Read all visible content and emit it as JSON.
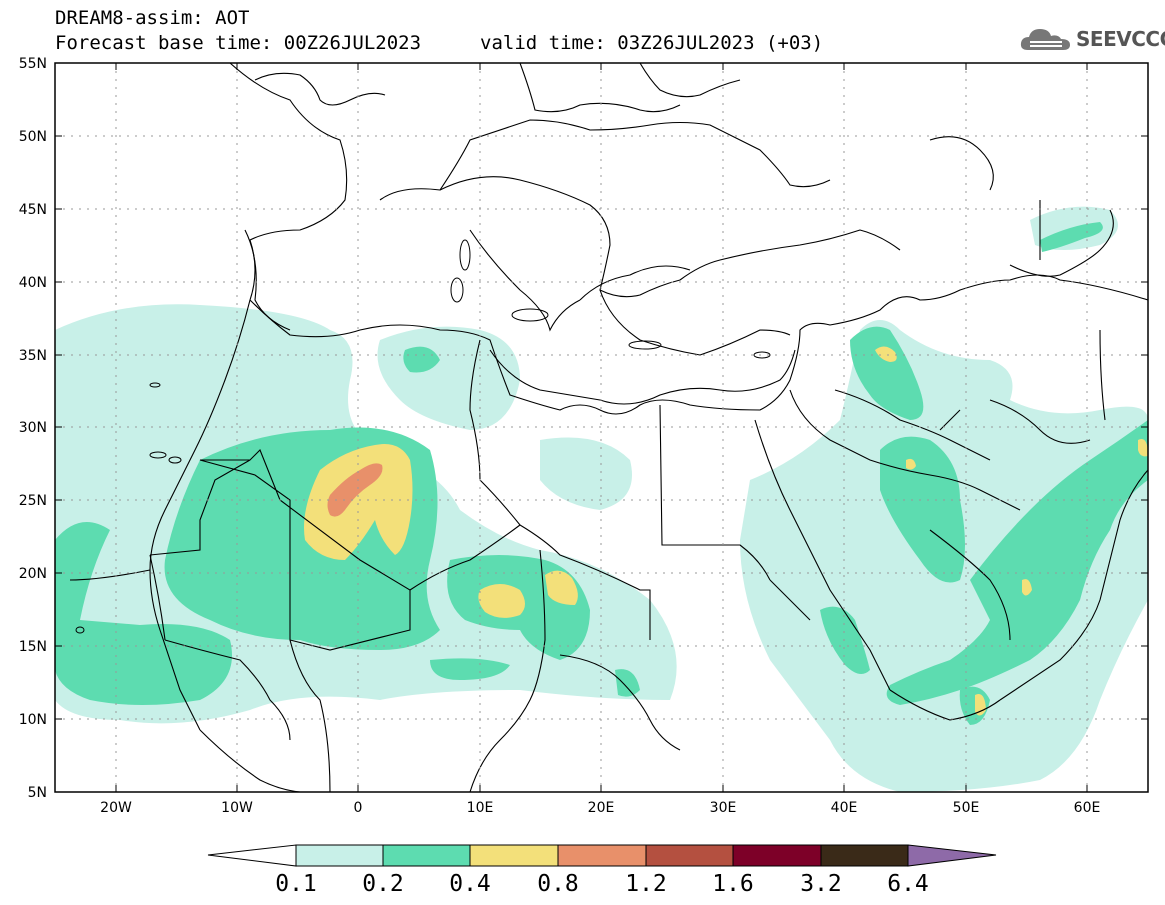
{
  "header": {
    "line1": "DREAM8-assim: AOT",
    "line2": "Forecast base time: 00Z26JUL2023",
    "valid": "valid time: 03Z26JUL2023 (+03)",
    "logo": "SEEVCCC"
  },
  "axes": {
    "lat_labels": [
      "55N",
      "50N",
      "45N",
      "40N",
      "35N",
      "30N",
      "25N",
      "20N",
      "15N",
      "10N",
      "5N"
    ],
    "lon_labels": [
      "20W",
      "10W",
      "0",
      "10E",
      "20E",
      "30E",
      "40E",
      "50E",
      "60E"
    ]
  },
  "colorbar": {
    "labels": [
      "0.1",
      "0.2",
      "0.4",
      "0.8",
      "1.2",
      "1.6",
      "3.2",
      "6.4"
    ],
    "colors": [
      "#ffffff",
      "#c8f0e8",
      "#5ddcb0",
      "#f3e07a",
      "#e8906a",
      "#b45040",
      "#7d0028",
      "#3a2a18",
      "#8e6aa8"
    ]
  },
  "map": {
    "projection": "lat-lon",
    "lat_range": [
      5,
      55
    ],
    "lon_range": [
      -25,
      65
    ],
    "variable": "Aerosol Optical Thickness",
    "colors": {
      "very_light": "#c8f0e8",
      "light": "#5ddcb0",
      "yellow": "#f3e07a",
      "orange": "#e8906a",
      "border": "#000000"
    }
  }
}
